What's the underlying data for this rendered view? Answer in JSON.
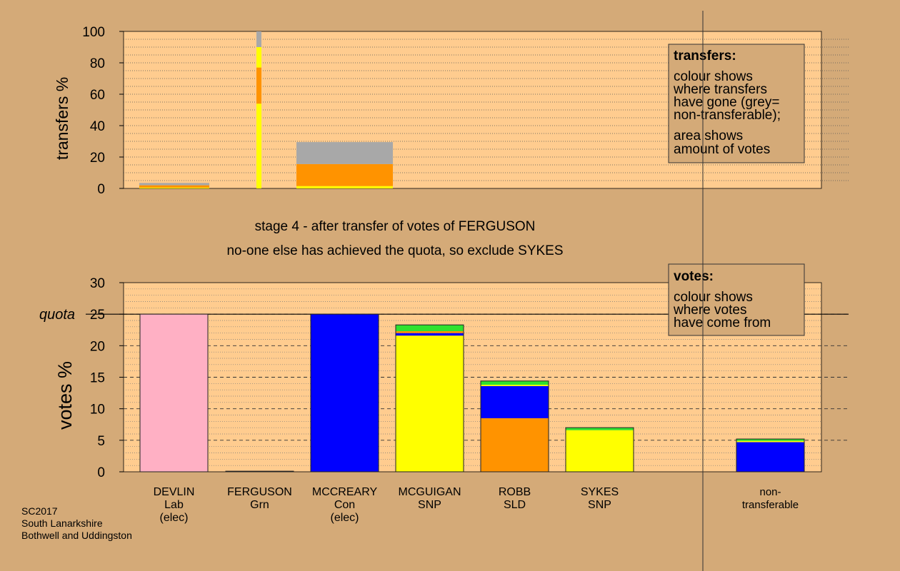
{
  "colors": {
    "background": "#d4aa78",
    "plot_bg": "#ffcc8f",
    "pink": "#ffb0c4",
    "blue": "#0000ff",
    "yellow": "#ffff00",
    "orange": "#ff9300",
    "green": "#2fe22f",
    "grey": "#a8a8a8"
  },
  "stage_title": "stage 4 - after transfer of votes of FERGUSON",
  "stage_subtitle": "no-one else has achieved the quota, so exclude SYKES",
  "footer": [
    "SC2017",
    "South Lanarkshire",
    "Bothwell and Uddingston"
  ],
  "chart_data": [
    {
      "type": "bar",
      "stacked": true,
      "ylabel": "transfers %",
      "ylim": [
        0,
        100
      ],
      "yticks": [
        0,
        20,
        40,
        60,
        80,
        100
      ],
      "grid": "dotted",
      "legend": {
        "placement": "top-right",
        "title": "transfers:",
        "lines1": [
          "colour shows",
          "where transfers",
          "have gone (grey=",
          "non-transferable);"
        ],
        "lines2": [
          "area shows",
          "amount of votes"
        ]
      },
      "bars": [
        {
          "candidate": "DEVLIN",
          "segments": [
            {
              "color": "yellow",
              "value": 0.5
            },
            {
              "color": "orange",
              "value": 1.5
            },
            {
              "color": "grey",
              "value": 1.5
            }
          ]
        },
        {
          "candidate": "FERGUSON",
          "segments": [
            {
              "color": "yellow",
              "value": 54
            },
            {
              "color": "orange",
              "value": 23
            },
            {
              "color": "yellow",
              "value": 13
            },
            {
              "color": "grey",
              "value": 10
            }
          ]
        },
        {
          "candidate": "MCCREARY",
          "segments": [
            {
              "color": "yellow",
              "value": 1.5
            },
            {
              "color": "orange",
              "value": 14
            },
            {
              "color": "grey",
              "value": 14
            }
          ]
        }
      ]
    },
    {
      "type": "bar",
      "stacked": true,
      "ylabel": "votes %",
      "ylim": [
        0,
        30
      ],
      "yticks": [
        0,
        5,
        10,
        15,
        20,
        25,
        30
      ],
      "quota": 25,
      "quota_label": "quota",
      "grid": "dashed",
      "legend": {
        "placement": "top-right",
        "title": "votes:",
        "lines1": [
          "colour shows",
          "where votes",
          "have come from"
        ]
      },
      "bars": [
        {
          "name": "DEVLIN",
          "party": "Lab",
          "note": "(elec)",
          "segments": [
            {
              "color": "pink",
              "value": 25
            }
          ]
        },
        {
          "name": "FERGUSON",
          "party": "Grn",
          "note": "",
          "segments": [
            {
              "color": "green",
              "value": 0.1
            }
          ]
        },
        {
          "name": "MCCREARY",
          "party": "Con",
          "note": "(elec)",
          "segments": [
            {
              "color": "blue",
              "value": 25
            }
          ]
        },
        {
          "name": "MCGUIGAN",
          "party": "SNP",
          "note": "",
          "segments": [
            {
              "color": "yellow",
              "value": 21.6
            },
            {
              "color": "blue",
              "value": 0.4
            },
            {
              "color": "orange",
              "value": 0.3
            },
            {
              "color": "green",
              "value": 1.0
            }
          ]
        },
        {
          "name": "ROBB",
          "party": "SLD",
          "note": "",
          "segments": [
            {
              "color": "orange",
              "value": 8.5
            },
            {
              "color": "blue",
              "value": 5.1
            },
            {
              "color": "yellow",
              "value": 0.2
            },
            {
              "color": "green",
              "value": 0.6
            }
          ]
        },
        {
          "name": "SYKES",
          "party": "SNP",
          "note": "",
          "segments": [
            {
              "color": "yellow",
              "value": 6.6
            },
            {
              "color": "green",
              "value": 0.4
            }
          ]
        },
        {
          "name": "non-",
          "party": "transferable",
          "note": "",
          "segments": [
            {
              "color": "blue",
              "value": 4.7
            },
            {
              "color": "yellow",
              "value": 0.2
            },
            {
              "color": "green",
              "value": 0.3
            }
          ]
        }
      ]
    }
  ]
}
